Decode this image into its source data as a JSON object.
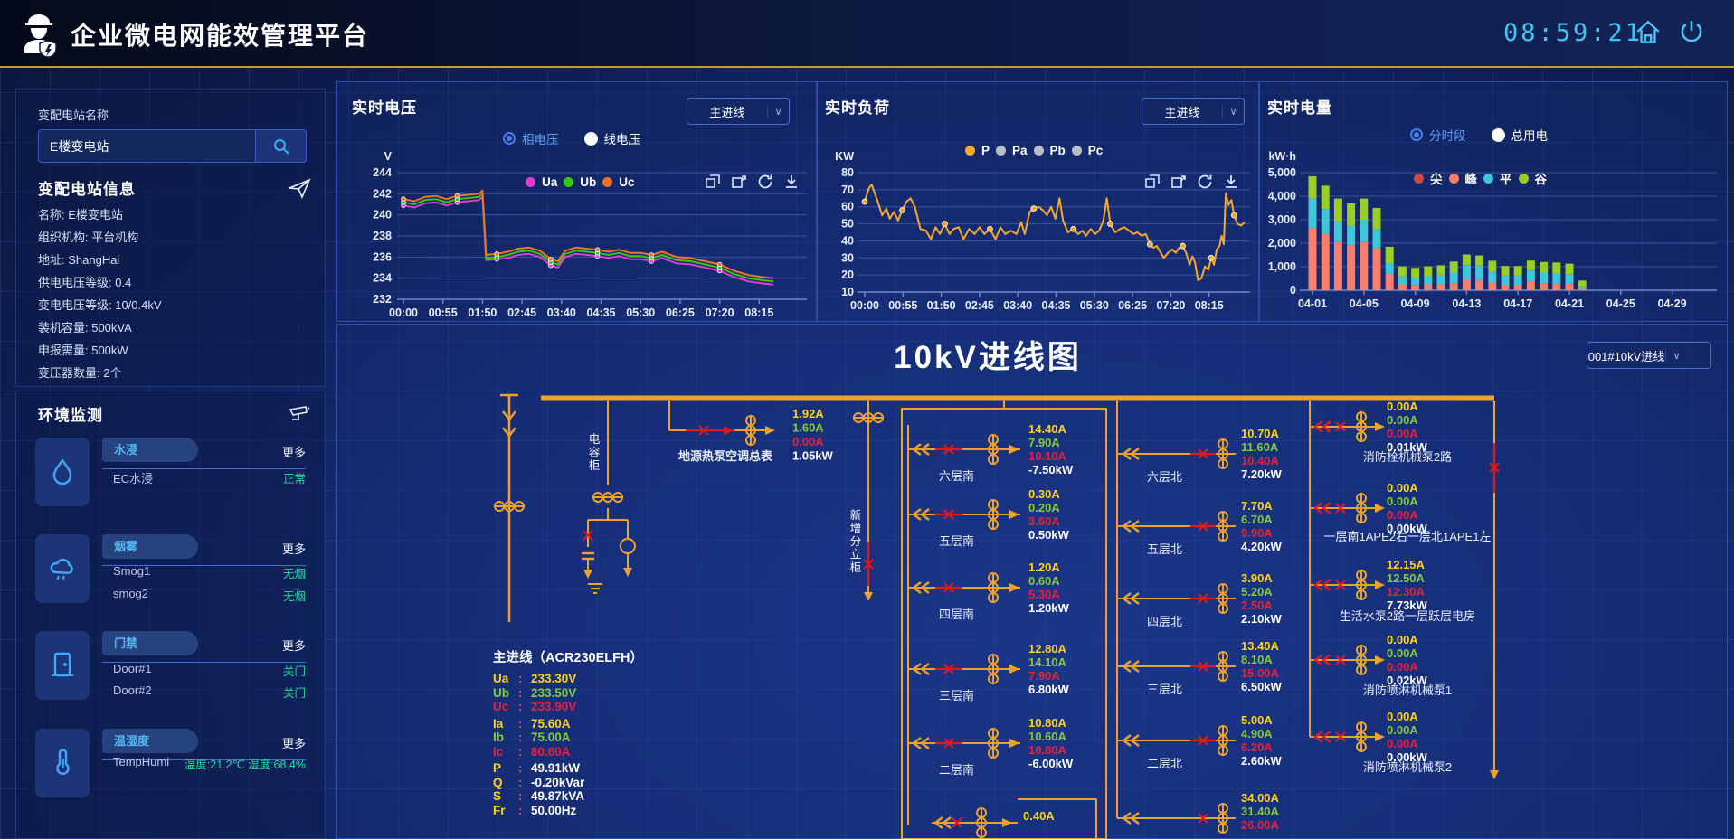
{
  "header": {
    "title": "企业微电网能效管理平台",
    "clock": "08:59:21"
  },
  "sidebar": {
    "station_label": "变配电站名称",
    "station_input": "E楼变电站",
    "info_title": "变配电站信息",
    "info_rows": [
      "名称: E楼变电站",
      "组织机构: 平台机构",
      "地址: ShangHai",
      "供电电压等级: 0.4",
      "变电电压等级: 10/0.4kV",
      "装机容量: 500kVA",
      "申报需量: 500kW",
      "变压器数量: 2个"
    ],
    "env_title": "环境监测",
    "more_label": "更多",
    "env_groups": [
      {
        "tab": "水浸",
        "icon": "droplet",
        "rows": [
          {
            "name": "EC水浸",
            "status": "正常"
          }
        ]
      },
      {
        "tab": "烟雾",
        "icon": "smoke",
        "rows": [
          {
            "name": "Smog1",
            "status": "无烟"
          },
          {
            "name": "smog2",
            "status": "无烟"
          }
        ]
      },
      {
        "tab": "门禁",
        "icon": "door",
        "rows": [
          {
            "name": "Door#1",
            "status": "关门"
          },
          {
            "name": "Door#2",
            "status": "关门"
          }
        ]
      },
      {
        "tab": "温湿度",
        "icon": "thermometer",
        "rows": [
          {
            "name": "TempHumi",
            "status": "温度:21.2℃ 湿度:68.4%"
          }
        ]
      }
    ]
  },
  "charts": {
    "voltage": {
      "title": "实时电压",
      "dropdown": "主进线",
      "radio": [
        "相电压",
        "线电压"
      ],
      "unit": "V"
    },
    "load": {
      "title": "实时负荷",
      "dropdown": "主进线",
      "legend": [
        "P",
        "Pa",
        "Pb",
        "Pc"
      ],
      "unit": "KW"
    },
    "energy": {
      "title": "实时电量",
      "radio": [
        "分时段",
        "总用电"
      ],
      "legend": [
        "尖",
        "峰",
        "平",
        "谷"
      ],
      "unit": "kW·h"
    }
  },
  "chart_data": [
    {
      "type": "line",
      "title": "实时电压",
      "ylabel": "V",
      "ylim": [
        232,
        244
      ],
      "y_ticks": [
        "244",
        "242",
        "240",
        "238",
        "236",
        "234",
        "232"
      ],
      "y_tick_values": [
        244,
        242,
        240,
        238,
        236,
        234,
        232
      ],
      "x_ticks": [
        "00:00",
        "00:55",
        "01:50",
        "02:45",
        "03:40",
        "04:35",
        "05:30",
        "06:25",
        "07:20",
        "08:15"
      ],
      "x_minutes": [
        0,
        15,
        30,
        45,
        60,
        75,
        90,
        105,
        110,
        115,
        130,
        145,
        160,
        175,
        190,
        205,
        215,
        225,
        240,
        255,
        270,
        285,
        300,
        315,
        330,
        345,
        360,
        380,
        400,
        420,
        440,
        460,
        480,
        500,
        515
      ],
      "colors": {
        "Ua": "#E23BD3",
        "Ub": "#39C511",
        "Uc": "#EF7325"
      },
      "series": [
        {
          "name": "Ua",
          "values": [
            240.9,
            240.7,
            241.1,
            241.2,
            240.9,
            241.2,
            241.3,
            241.4,
            241.7,
            235.7,
            235.8,
            235.9,
            236.2,
            236.3,
            236.0,
            235.2,
            235.0,
            236.0,
            236.3,
            236.2,
            236.1,
            235.9,
            236.1,
            235.8,
            235.8,
            235.6,
            235.9,
            235.4,
            235.3,
            235.0,
            234.7,
            234.1,
            233.7,
            233.5,
            233.4
          ]
        },
        {
          "name": "Ub",
          "values": [
            241.2,
            241.0,
            241.4,
            241.5,
            241.2,
            241.5,
            241.6,
            241.7,
            242.0,
            235.9,
            236.0,
            236.2,
            236.5,
            236.6,
            236.3,
            235.5,
            235.3,
            236.3,
            236.6,
            236.5,
            236.4,
            236.2,
            236.4,
            236.1,
            236.1,
            235.9,
            236.2,
            235.7,
            235.6,
            235.3,
            235.0,
            234.4,
            234.0,
            233.8,
            233.7
          ]
        },
        {
          "name": "Uc",
          "values": [
            241.5,
            241.3,
            241.7,
            241.8,
            241.5,
            241.8,
            241.9,
            242.0,
            242.3,
            236.2,
            236.3,
            236.5,
            236.8,
            236.9,
            236.6,
            235.8,
            235.6,
            236.6,
            236.9,
            236.8,
            236.7,
            236.5,
            236.7,
            236.4,
            236.4,
            236.2,
            236.5,
            236.0,
            235.9,
            235.6,
            235.3,
            234.7,
            234.3,
            234.1,
            234.0
          ]
        }
      ]
    },
    {
      "type": "line",
      "title": "实时负荷",
      "ylabel": "KW",
      "ylim": [
        10,
        80
      ],
      "y_ticks": [
        "80",
        "70",
        "60",
        "50",
        "40",
        "30",
        "20",
        "10"
      ],
      "y_tick_values": [
        80,
        70,
        60,
        50,
        40,
        30,
        20,
        10
      ],
      "x_ticks": [
        "00:00",
        "00:55",
        "01:50",
        "02:45",
        "03:40",
        "04:35",
        "05:30",
        "06:25",
        "07:20",
        "08:15"
      ],
      "x_minutes": [
        0,
        6,
        10,
        18,
        25,
        31,
        36,
        42,
        48,
        54,
        60,
        66,
        72,
        80,
        88,
        95,
        102,
        108,
        115,
        122,
        128,
        135,
        142,
        150,
        158,
        165,
        172,
        180,
        188,
        195,
        202,
        210,
        218,
        225,
        230,
        237,
        243,
        250,
        256,
        262,
        268,
        274,
        280,
        285,
        292,
        300,
        307,
        313,
        318,
        325,
        331,
        337,
        343,
        348,
        353,
        360,
        367,
        373,
        380,
        386,
        392,
        398,
        404,
        410,
        415,
        420,
        424,
        430,
        436,
        442,
        447,
        452,
        457,
        462,
        467,
        471,
        475,
        479,
        484,
        489,
        494,
        498,
        502,
        506,
        510,
        513,
        516,
        519,
        523,
        527,
        531,
        536,
        541,
        546
      ],
      "colors": {
        "P": "#F5A731"
      },
      "series": [
        {
          "name": "P",
          "values": [
            63,
            71,
            73,
            64,
            55,
            59,
            53,
            57,
            52,
            58,
            63,
            65,
            60,
            47,
            46,
            41,
            48,
            44,
            50,
            44,
            47,
            48,
            41,
            47,
            44,
            48,
            44,
            47,
            41,
            48,
            44,
            46,
            44,
            51,
            44,
            57,
            59,
            60,
            58,
            55,
            60,
            53,
            65,
            52,
            45,
            47,
            44,
            46,
            43,
            47,
            44,
            46,
            52,
            65,
            50,
            45,
            47,
            48,
            46,
            44,
            45,
            43,
            44,
            38,
            36,
            37,
            34,
            30,
            33,
            35,
            33,
            36,
            37,
            33,
            26,
            31,
            27,
            17,
            18,
            25,
            23,
            30,
            26,
            35,
            37,
            43,
            38,
            68,
            61,
            64,
            55,
            50,
            49,
            51
          ]
        }
      ],
      "disabled_series": [
        "Pa",
        "Pb",
        "Pc"
      ]
    },
    {
      "type": "bar",
      "title": "实时电量",
      "ylabel": "kW·h",
      "ylim": [
        0,
        5000
      ],
      "y_ticks": [
        "5,000",
        "4,000",
        "3,000",
        "2,000",
        "1,000",
        "0"
      ],
      "y_tick_values": [
        5000,
        4000,
        3000,
        2000,
        1000,
        0
      ],
      "x_ticks": [
        "04-01",
        "04-05",
        "04-09",
        "04-13",
        "04-17",
        "04-21",
        "04-25",
        "04-29"
      ],
      "categories": [
        "04-01",
        "04-02",
        "04-03",
        "04-04",
        "04-05",
        "04-06",
        "04-07",
        "04-08",
        "04-09",
        "04-10",
        "04-11",
        "04-12",
        "04-13",
        "04-14",
        "04-15",
        "04-16",
        "04-17",
        "04-18",
        "04-19",
        "04-20",
        "04-21",
        "04-22",
        "04-23",
        "04-24",
        "04-25",
        "04-26",
        "04-27",
        "04-28",
        "04-29",
        "04-30"
      ],
      "colors": {
        "尖": "#CB4A3E",
        "峰": "#F87E6E",
        "平": "#3FC6D8",
        "谷": "#9ACD27"
      },
      "series": [
        {
          "name": "尖",
          "values": [
            0,
            0,
            0,
            0,
            0,
            0,
            0,
            0,
            0,
            0,
            0,
            0,
            0,
            0,
            0,
            0,
            0,
            0,
            0,
            0,
            0,
            0,
            0,
            0,
            0,
            0,
            0,
            0,
            0,
            0
          ]
        },
        {
          "name": "峰",
          "values": [
            2650,
            2400,
            2050,
            1900,
            2050,
            1800,
            700,
            250,
            220,
            250,
            260,
            300,
            420,
            430,
            330,
            230,
            230,
            380,
            300,
            280,
            280,
            60,
            0,
            0,
            0,
            0,
            0,
            0,
            0,
            0
          ]
        },
        {
          "name": "平",
          "values": [
            1250,
            1050,
            850,
            850,
            950,
            800,
            450,
            350,
            300,
            350,
            400,
            450,
            650,
            620,
            450,
            400,
            400,
            480,
            450,
            430,
            400,
            100,
            0,
            0,
            0,
            0,
            0,
            0,
            0,
            0
          ]
        },
        {
          "name": "谷",
          "values": [
            950,
            1000,
            1000,
            950,
            900,
            900,
            700,
            420,
            430,
            420,
            400,
            470,
            450,
            430,
            470,
            400,
            400,
            400,
            450,
            470,
            450,
            250,
            0,
            0,
            0,
            0,
            0,
            0,
            0,
            0
          ]
        }
      ]
    }
  ],
  "diagram": {
    "title": "10kV进线图",
    "dropdown": "001#10kV进线",
    "cap_label": "电容柜",
    "new_panel_label": "新增分立柜",
    "heat_branch": {
      "label": "地源热泵空调总表",
      "values": [
        "1.92A",
        "1.60A",
        "0.00A",
        "1.05kW"
      ]
    },
    "main_meter": {
      "title": "主进线（ACR230ELFH）",
      "rows": [
        {
          "l": "Ua",
          "v": "233.30V",
          "c": "#FFD21E",
          "lc": "#FFD21E"
        },
        {
          "l": "Ub",
          "v": "233.50V",
          "c": "#86C93E",
          "lc": "#86C93E"
        },
        {
          "l": "Uc",
          "v": "233.90V",
          "c": "#E8203C",
          "lc": "#E8203C"
        },
        {
          "l": "Ia",
          "v": "75.60A",
          "c": "#FFD21E",
          "lc": "#FFD21E"
        },
        {
          "l": "Ib",
          "v": "75.00A",
          "c": "#86C93E",
          "lc": "#86C93E"
        },
        {
          "l": "Ic",
          "v": "80.60A",
          "c": "#E8203C",
          "lc": "#E8203C"
        },
        {
          "l": "P",
          "v": "49.91kW",
          "c": "#FFFFFF",
          "lc": "#FFD21E"
        },
        {
          "l": "Q",
          "v": "-0.20kVar",
          "c": "#FFFFFF",
          "lc": "#FFD21E"
        },
        {
          "l": "S",
          "v": "49.87kVA",
          "c": "#FFFFFF",
          "lc": "#FFD21E"
        },
        {
          "l": "Fr",
          "v": "50.00Hz",
          "c": "#FFFFFF",
          "lc": "#FFD21E"
        }
      ]
    },
    "south_rows": [
      {
        "label": "六层南",
        "values": [
          "14.40A",
          "7.90A",
          "10.10A",
          "-7.50kW"
        ]
      },
      {
        "label": "五层南",
        "values": [
          "0.30A",
          "0.20A",
          "3.60A",
          "0.50kW"
        ]
      },
      {
        "label": "四层南",
        "values": [
          "1.20A",
          "0.60A",
          "5.30A",
          "1.20kW"
        ]
      },
      {
        "label": "三层南",
        "values": [
          "12.80A",
          "14.10A",
          "7.90A",
          "6.80kW"
        ]
      },
      {
        "label": "二层南",
        "values": [
          "10.80A",
          "10.60A",
          "10.80A",
          "-6.00kW"
        ]
      },
      {
        "label": "",
        "values": [
          "0.40A"
        ]
      }
    ],
    "north_rows": [
      {
        "label": "六层北",
        "values": [
          "10.70A",
          "11.60A",
          "10.40A",
          "7.20kW"
        ]
      },
      {
        "label": "五层北",
        "values": [
          "7.70A",
          "6.70A",
          "9.90A",
          "4.20kW"
        ]
      },
      {
        "label": "四层北",
        "values": [
          "3.90A",
          "5.20A",
          "2.50A",
          "2.10kW"
        ]
      },
      {
        "label": "三层北",
        "values": [
          "13.40A",
          "8.10A",
          "15.00A",
          "6.50kW"
        ]
      },
      {
        "label": "二层北",
        "values": [
          "5.00A",
          "4.90A",
          "6.20A",
          "2.60kW"
        ]
      },
      {
        "label": "",
        "values": [
          "34.00A",
          "31.40A",
          "26.00A"
        ]
      }
    ],
    "right_rows": [
      {
        "label": "消防栓机械泵2路",
        "values": [
          "0.00A",
          "0.00A",
          "0.00A",
          "0.01kW"
        ]
      },
      {
        "label": "一层南1APE2右一层北1APE1左",
        "values": [
          "0.00A",
          "0.00A",
          "0.00A",
          "0.00kW"
        ]
      },
      {
        "label": "生活水泵2路一层跃层电房",
        "values": [
          "12.15A",
          "12.50A",
          "12.30A",
          "7.73kW"
        ]
      },
      {
        "label": "消防喷淋机械泵1",
        "values": [
          "0.00A",
          "0.00A",
          "0.00A",
          "0.02kW"
        ]
      },
      {
        "label": "消防喷淋机械泵2",
        "values": [
          "0.00A",
          "0.00A",
          "0.00A",
          "0.00kW"
        ]
      }
    ]
  }
}
